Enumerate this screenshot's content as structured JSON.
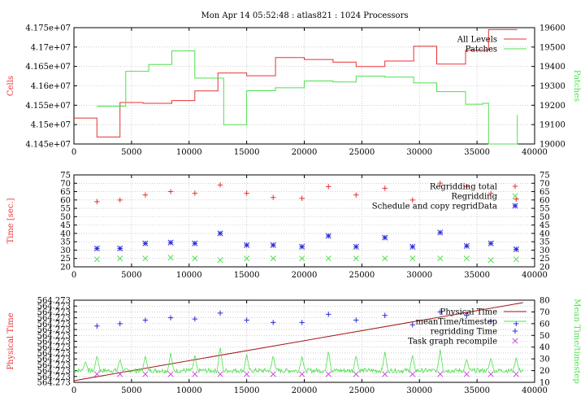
{
  "title": "Mon Apr 14 05:52:48 : atlas821 : 1024 Processors",
  "colors": {
    "red": "#e83232",
    "green": "#4ee04e",
    "blue": "#2b2bd9",
    "magenta": "#c84cd8",
    "darkred": "#a01818",
    "grid": "#b0b0b0"
  },
  "chart_data": [
    {
      "type": "line",
      "step": true,
      "xlim": [
        0,
        40000
      ],
      "xticks": [
        "0",
        "5000",
        "10000",
        "15000",
        "20000",
        "25000",
        "30000",
        "35000",
        "40000"
      ],
      "ylabel": "Cells",
      "ylim": [
        41450000,
        41750000
      ],
      "yticks": [
        "4.145e+07",
        "4.15e+07",
        "4.155e+07",
        "4.16e+07",
        "4.165e+07",
        "4.17e+07",
        "4.175e+07"
      ],
      "y2label": "Patches",
      "y2lim": [
        19000,
        19600
      ],
      "y2ticks": [
        "19000",
        "19100",
        "19200",
        "19300",
        "19400",
        "19500",
        "19600"
      ],
      "legend_position": "top-right",
      "grid": true,
      "series": [
        {
          "name": "All Levels",
          "axis": "left",
          "color": "red",
          "x": [
            0,
            2000,
            2000,
            4000,
            4000,
            6000,
            6000,
            8500,
            8500,
            10500,
            10500,
            12500,
            12500,
            15000,
            15000,
            17500,
            17500,
            20000,
            20000,
            22500,
            22500,
            24500,
            24500,
            27000,
            27000,
            29500,
            29500,
            31500,
            31500,
            34000,
            34000,
            36000,
            36000,
            38500
          ],
          "values": [
            41517000,
            41517000,
            41468000,
            41468000,
            41557000,
            41557000,
            41555000,
            41555000,
            41562000,
            41562000,
            41587000,
            41587000,
            41633000,
            41633000,
            41626000,
            41626000,
            41673000,
            41673000,
            41668000,
            41668000,
            41661000,
            41661000,
            41650000,
            41650000,
            41664000,
            41664000,
            41702000,
            41702000,
            41656000,
            41656000,
            41692000,
            41692000,
            41745000,
            41745000
          ]
        },
        {
          "name": "Patches",
          "axis": "right",
          "color": "green",
          "x": [
            2000,
            4500,
            4500,
            6500,
            6500,
            8500,
            8500,
            10500,
            10500,
            13000,
            13000,
            15000,
            15000,
            17500,
            17500,
            20000,
            20000,
            22500,
            22500,
            24500,
            24500,
            27000,
            27000,
            29500,
            29500,
            31500,
            31500,
            34000,
            34000,
            35500,
            35500,
            36000,
            36000,
            38500,
            38500
          ],
          "values": [
            19195,
            19195,
            19375,
            19375,
            19410,
            19410,
            19480,
            19480,
            19340,
            19340,
            19100,
            19100,
            19275,
            19275,
            19290,
            19290,
            19325,
            19325,
            19320,
            19320,
            19350,
            19350,
            19345,
            19345,
            19315,
            19315,
            19270,
            19270,
            19205,
            19205,
            19210,
            19210,
            19000,
            19000,
            19150
          ]
        }
      ]
    },
    {
      "type": "scatter",
      "xlim": [
        0,
        40000
      ],
      "xticks": [
        "0",
        "5000",
        "10000",
        "15000",
        "20000",
        "25000",
        "30000",
        "35000",
        "40000"
      ],
      "ylabel": "Time [sec.]",
      "ylim": [
        20,
        75
      ],
      "yticks": [
        "20",
        "25",
        "30",
        "35",
        "40",
        "45",
        "50",
        "55",
        "60",
        "65",
        "70",
        "75"
      ],
      "y2lim": [
        20,
        75
      ],
      "y2ticks": [
        "20",
        "25",
        "30",
        "35",
        "40",
        "45",
        "50",
        "55",
        "60",
        "65",
        "70",
        "75"
      ],
      "legend_position": "top-right",
      "grid": true,
      "series": [
        {
          "name": "Regridding total",
          "marker": "plus",
          "color": "red",
          "x": [
            2000,
            4000,
            6200,
            8400,
            10500,
            12700,
            15000,
            17300,
            19800,
            22100,
            24500,
            27000,
            29400,
            31800,
            34100,
            36200,
            38400
          ],
          "values": [
            59,
            60,
            63,
            65,
            64,
            69,
            64,
            61.5,
            61,
            68,
            63,
            67,
            60,
            70,
            68,
            64,
            60.5
          ]
        },
        {
          "name": "Regridding",
          "marker": "cross",
          "color": "green",
          "x": [
            2000,
            4000,
            6200,
            8400,
            10500,
            12700,
            15000,
            17300,
            19800,
            22100,
            24500,
            27000,
            29400,
            31800,
            34100,
            36200,
            38400
          ],
          "values": [
            24.5,
            25,
            25,
            25.5,
            25,
            24,
            25,
            25,
            25,
            25,
            25,
            25,
            25,
            25,
            25,
            24,
            24.5
          ]
        },
        {
          "name": "Schedule and copy regridData",
          "marker": "star",
          "color": "blue",
          "x": [
            2000,
            4000,
            6200,
            8400,
            10500,
            12700,
            15000,
            17300,
            19800,
            22100,
            24500,
            27000,
            29400,
            31800,
            34100,
            36200,
            38400
          ],
          "values": [
            31,
            31,
            34,
            34.5,
            34,
            40,
            33,
            33,
            32,
            38.5,
            32,
            37.5,
            32,
            40.5,
            32.5,
            34,
            30.5
          ]
        }
      ]
    },
    {
      "type": "line",
      "xlim": [
        0,
        40000
      ],
      "xticks": [
        "0",
        "5000",
        "10000",
        "15000",
        "20000",
        "25000",
        "30000",
        "35000",
        "40000"
      ],
      "ylabel": "Physical Time",
      "ylim": [
        0,
        1
      ],
      "yticks": [
        "564.273",
        "564.273",
        "564.273",
        "564.273",
        "564.273",
        "564.273",
        "564.273",
        "564.273",
        "564.273",
        "564.273",
        "564.273",
        "564.273",
        "564.273",
        "564.273",
        "564.273"
      ],
      "y2label": "Mean Time/timestep",
      "y2lim": [
        10,
        80
      ],
      "y2ticks": [
        "10",
        "20",
        "30",
        "40",
        "50",
        "60",
        "70",
        "80"
      ],
      "legend_position": "top-right",
      "grid": true,
      "physical_time": {
        "name": "Physical Time",
        "color": "darkred",
        "x": [
          0,
          39000
        ],
        "values": [
          0.02,
          0.97
        ]
      },
      "mean_time": {
        "name": "meanTime/timestep",
        "color": "green",
        "baseline": 20,
        "spike_x": [
          1000,
          2000,
          4000,
          6200,
          8400,
          10500,
          12700,
          15000,
          17300,
          19800,
          22100,
          24500,
          27000,
          29400,
          31800,
          34100,
          36200,
          38400
        ],
        "spike_values": [
          28,
          33,
          30,
          33,
          35,
          33,
          41,
          34,
          33,
          32,
          37,
          33,
          36,
          33,
          38,
          30,
          31,
          31
        ]
      },
      "regridding_time": {
        "name": "regridding Time",
        "color": "blue",
        "x": [
          2000,
          4000,
          6200,
          8400,
          10500,
          12700,
          15000,
          17300,
          19800,
          22100,
          24500,
          27000,
          29400,
          31800,
          34100,
          36200,
          38400
        ],
        "values": [
          58,
          60,
          63,
          65,
          64,
          69,
          63,
          61,
          61,
          68,
          63,
          67,
          59,
          70,
          67,
          62,
          60
        ]
      },
      "task_graph": {
        "name": "Task graph recompile",
        "color": "magenta",
        "x": [
          2000,
          4000,
          6200,
          8400,
          10500,
          12700,
          15000,
          17300,
          19800,
          22100,
          24500,
          27000,
          29400,
          31800,
          34100,
          36200,
          38400
        ],
        "values": [
          17,
          17,
          17,
          17,
          17,
          17,
          17,
          17,
          17,
          17,
          17,
          17,
          17,
          17,
          17,
          17,
          17
        ]
      }
    }
  ]
}
